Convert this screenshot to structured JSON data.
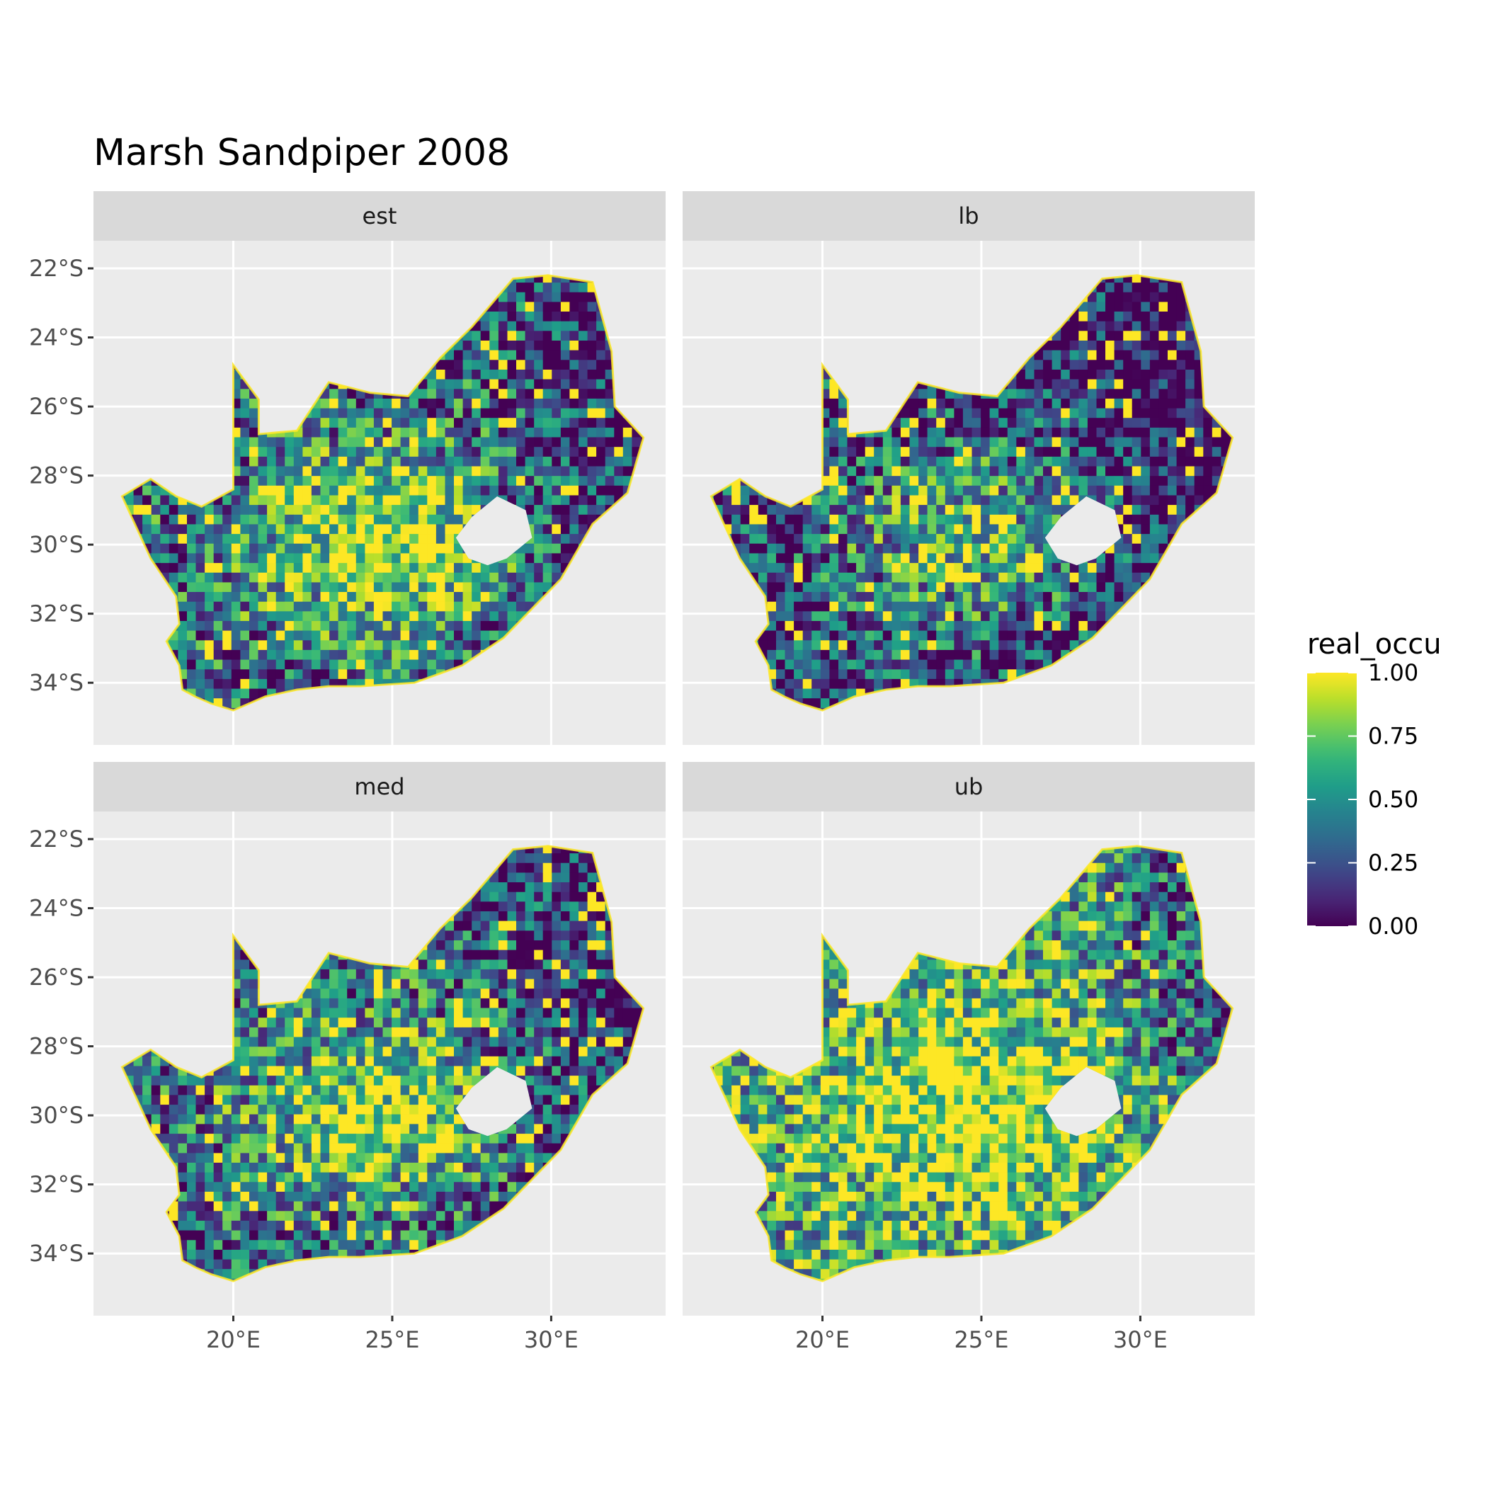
{
  "title": "Marsh Sandpiper 2008",
  "panels": [
    {
      "label": "est",
      "mean": 0.55
    },
    {
      "label": "lb",
      "mean": 0.25
    },
    {
      "label": "med",
      "mean": 0.5
    },
    {
      "label": "ub",
      "mean": 0.78
    }
  ],
  "axes": {
    "x_ticks": [
      {
        "value": 20,
        "label": "20°E"
      },
      {
        "value": 25,
        "label": "25°E"
      },
      {
        "value": 30,
        "label": "30°E"
      }
    ],
    "y_ticks": [
      {
        "value": -22,
        "label": "22°S"
      },
      {
        "value": -24,
        "label": "24°S"
      },
      {
        "value": -26,
        "label": "26°S"
      },
      {
        "value": -28,
        "label": "28°S"
      },
      {
        "value": -30,
        "label": "30°S"
      },
      {
        "value": -32,
        "label": "32°S"
      },
      {
        "value": -34,
        "label": "34°S"
      }
    ],
    "xlim": [
      15.6,
      33.6
    ],
    "ylim": [
      -35.8,
      -21.2
    ]
  },
  "legend": {
    "title": "real_occu",
    "labels": [
      "1.00",
      "0.75",
      "0.50",
      "0.25",
      "0.00"
    ],
    "colors": [
      "#fde725",
      "#7ad151",
      "#22a884",
      "#2a788e",
      "#414487",
      "#440154"
    ]
  },
  "chart_data": {
    "type": "heatmap",
    "title": "Marsh Sandpiper 2008",
    "facets": [
      "est",
      "lb",
      "med",
      "ub"
    ],
    "fill_variable": "real_occu",
    "fill_range": [
      0,
      1
    ],
    "xlim": [
      15.6,
      33.6
    ],
    "ylim": [
      -35.8,
      -21.2
    ],
    "region_outline_lonlat": [
      [
        16.5,
        -28.6
      ],
      [
        17.4,
        -28.1
      ],
      [
        18.2,
        -28.6
      ],
      [
        19.0,
        -28.9
      ],
      [
        20.0,
        -28.4
      ],
      [
        20.0,
        -24.8
      ],
      [
        20.8,
        -25.8
      ],
      [
        20.8,
        -26.8
      ],
      [
        22.0,
        -26.7
      ],
      [
        23.0,
        -25.3
      ],
      [
        24.3,
        -25.6
      ],
      [
        25.5,
        -25.7
      ],
      [
        26.5,
        -24.6
      ],
      [
        27.5,
        -23.7
      ],
      [
        28.8,
        -22.3
      ],
      [
        29.9,
        -22.2
      ],
      [
        31.3,
        -22.4
      ],
      [
        31.9,
        -24.4
      ],
      [
        32.0,
        -26.0
      ],
      [
        32.9,
        -26.9
      ],
      [
        32.4,
        -28.5
      ],
      [
        31.3,
        -29.4
      ],
      [
        30.3,
        -31.0
      ],
      [
        28.5,
        -32.7
      ],
      [
        27.2,
        -33.5
      ],
      [
        25.7,
        -34.0
      ],
      [
        24.0,
        -34.1
      ],
      [
        23.0,
        -34.1
      ],
      [
        22.0,
        -34.2
      ],
      [
        21.0,
        -34.4
      ],
      [
        20.0,
        -34.8
      ],
      [
        19.3,
        -34.6
      ],
      [
        18.8,
        -34.4
      ],
      [
        18.4,
        -34.2
      ],
      [
        18.3,
        -33.5
      ],
      [
        17.9,
        -32.8
      ],
      [
        18.3,
        -32.3
      ],
      [
        18.2,
        -31.5
      ],
      [
        17.4,
        -30.4
      ],
      [
        16.5,
        -28.6
      ]
    ],
    "hole_outline_lonlat": [
      [
        27.0,
        -29.8
      ],
      [
        27.5,
        -29.2
      ],
      [
        28.3,
        -28.6
      ],
      [
        29.2,
        -29.0
      ],
      [
        29.4,
        -29.8
      ],
      [
        28.6,
        -30.4
      ],
      [
        28.0,
        -30.6
      ],
      [
        27.4,
        -30.4
      ],
      [
        27.0,
        -29.8
      ]
    ]
  }
}
